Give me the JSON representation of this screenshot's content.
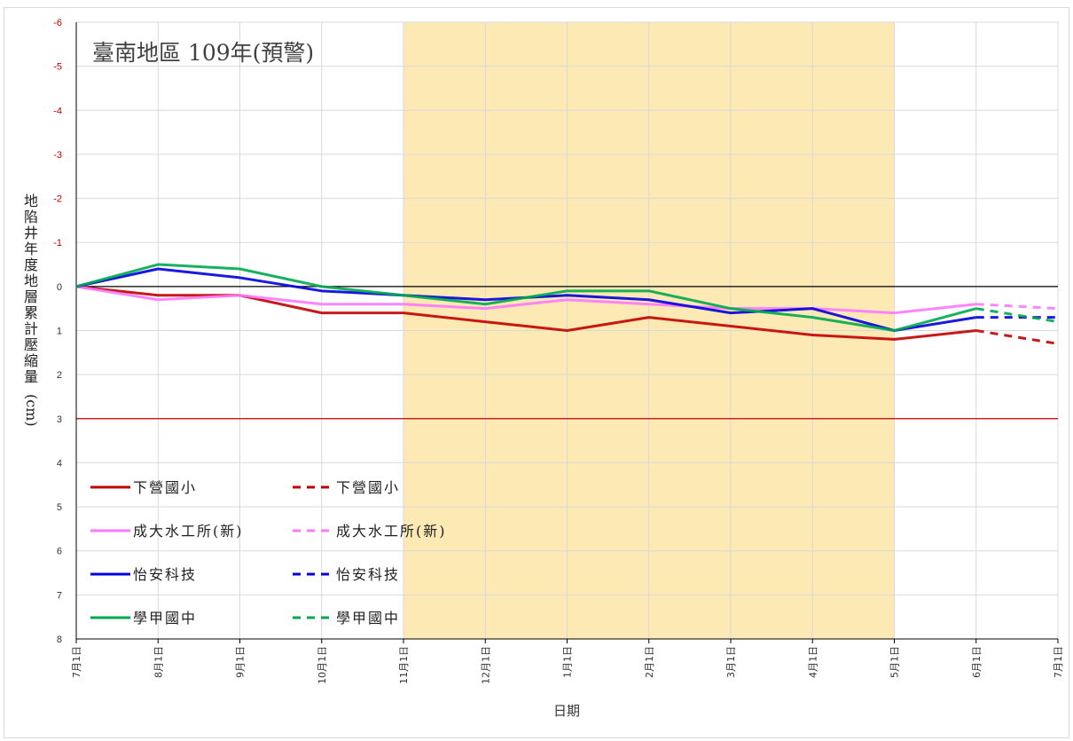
{
  "chart_data": {
    "type": "line",
    "title": "臺南地區 109年(預警)",
    "xlabel": "日期",
    "ylabel": "地陷井年度地層累計壓縮量(cm)",
    "ylim": [
      -6,
      8
    ],
    "y_reversed": true,
    "y_ticks": [
      "-6",
      "-5",
      "-4",
      "-3",
      "-2",
      "-1",
      "0",
      "1",
      "2",
      "3",
      "4",
      "5",
      "6",
      "7",
      "8"
    ],
    "categories": [
      "7月1日",
      "8月1日",
      "9月1日",
      "10月1日",
      "11月1日",
      "12月1日",
      "1月1日",
      "2月1日",
      "3月1日",
      "4月1日",
      "5月1日",
      "6月1日",
      "7月1日"
    ],
    "highlight_range": [
      "11月1日",
      "5月1日"
    ],
    "highlight_color": "#fde9b4",
    "warning_line": {
      "y": 3,
      "color": "#c00000"
    },
    "zero_line": {
      "y": 0,
      "color": "#000000"
    },
    "grid": true,
    "legend_position": "bottom-left",
    "series": [
      {
        "name": "下營國小",
        "color": "#c00000",
        "style": "solid",
        "values": [
          0,
          0.2,
          0.2,
          0.6,
          0.6,
          0.8,
          1.0,
          0.7,
          0.9,
          1.1,
          1.2,
          1.0,
          null
        ]
      },
      {
        "name": "成大水工所(新)",
        "color": "#ff77ff",
        "style": "solid",
        "values": [
          0,
          0.3,
          0.2,
          0.4,
          0.4,
          0.5,
          0.3,
          0.4,
          0.5,
          0.5,
          0.6,
          0.4,
          null
        ]
      },
      {
        "name": "怡安科技",
        "color": "#0000dd",
        "style": "solid",
        "values": [
          0,
          -0.4,
          -0.2,
          0.1,
          0.2,
          0.3,
          0.2,
          0.3,
          0.6,
          0.5,
          1.0,
          0.7,
          null
        ]
      },
      {
        "name": "學甲國中",
        "color": "#00a84f",
        "style": "solid",
        "values": [
          0,
          -0.5,
          -0.4,
          0.0,
          0.2,
          0.4,
          0.1,
          0.1,
          0.5,
          0.7,
          1.0,
          0.5,
          null
        ]
      },
      {
        "name": "下營國小",
        "color": "#c00000",
        "style": "dashed",
        "values": [
          null,
          null,
          null,
          null,
          null,
          null,
          null,
          null,
          null,
          null,
          null,
          1.0,
          1.3
        ]
      },
      {
        "name": "成大水工所(新)",
        "color": "#ff77ff",
        "style": "dashed",
        "values": [
          null,
          null,
          null,
          null,
          null,
          null,
          null,
          null,
          null,
          null,
          null,
          0.4,
          0.5
        ]
      },
      {
        "name": "怡安科技",
        "color": "#0000dd",
        "style": "dashed",
        "values": [
          null,
          null,
          null,
          null,
          null,
          null,
          null,
          null,
          null,
          null,
          null,
          0.7,
          0.7
        ]
      },
      {
        "name": "學甲國中",
        "color": "#00a84f",
        "style": "dashed",
        "values": [
          null,
          null,
          null,
          null,
          null,
          null,
          null,
          null,
          null,
          null,
          null,
          0.5,
          0.8
        ]
      }
    ],
    "legend": [
      {
        "solid": "下營國小",
        "dashed": "下營國小",
        "color": "#c00000"
      },
      {
        "solid": "成大水工所(新)",
        "dashed": "成大水工所(新)",
        "color": "#ff77ff"
      },
      {
        "solid": "怡安科技",
        "dashed": "怡安科技",
        "color": "#0000dd"
      },
      {
        "solid": "學甲國中",
        "dashed": "學甲國中",
        "color": "#00a84f"
      }
    ]
  }
}
